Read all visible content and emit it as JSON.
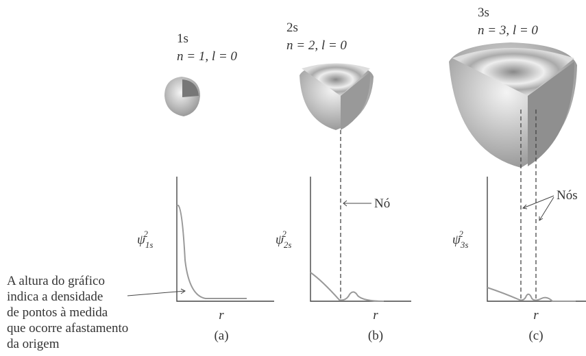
{
  "panels": [
    {
      "orbital": "1s",
      "quantum_numbers": "n = 1, l = 0",
      "y_label": {
        "symbol": "ψ",
        "subscript": "1s",
        "superscript": "2"
      },
      "x_label": "r",
      "caption": "(a)"
    },
    {
      "orbital": "2s",
      "quantum_numbers": "n = 2, l = 0",
      "y_label": {
        "symbol": "ψ",
        "subscript": "2s",
        "superscript": "2"
      },
      "x_label": "r",
      "caption": "(b)"
    },
    {
      "orbital": "3s",
      "quantum_numbers": "n = 3, l = 0",
      "y_label": {
        "symbol": "ψ",
        "subscript": "3s",
        "superscript": "2"
      },
      "x_label": "r",
      "caption": "(c)"
    }
  ],
  "node_labels": [
    "Nó",
    "Nós"
  ],
  "annotation": [
    "A altura do gráfico",
    "indica a densidade",
    "de pontos à medida",
    "que ocorre afastamento",
    "da origem"
  ]
}
